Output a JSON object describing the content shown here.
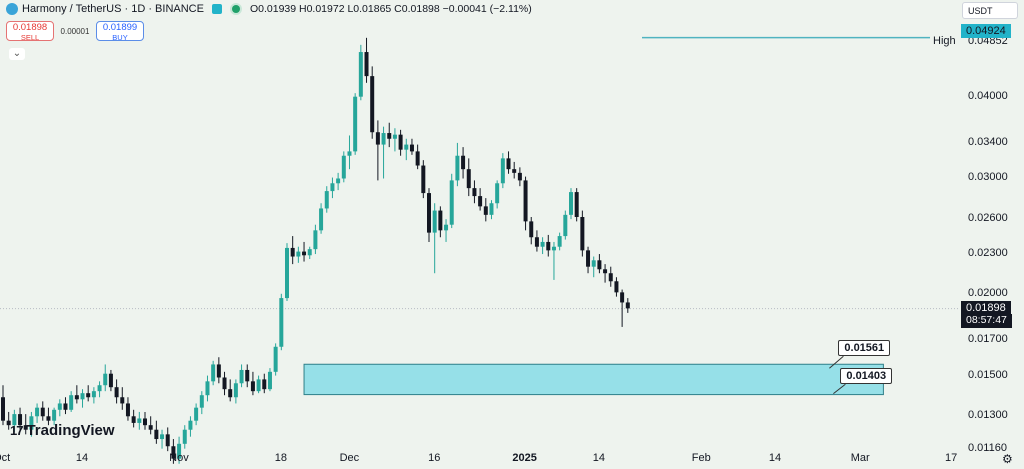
{
  "header": {
    "ticker": "Harmony / TetherUS · 1D · BINANCE",
    "ohlc": "O0.01939 H0.01972 L0.01865 C0.01898 −0.00041 (−2.11%)"
  },
  "trade": {
    "sell_price": "0.01898",
    "sell_label": "SELL",
    "spread": "0.00001",
    "buy_price": "0.01899",
    "buy_label": "BUY"
  },
  "currency": "USDT",
  "brand": "TradingView",
  "colors": {
    "up": "#26a69a",
    "down": "#131722",
    "zone_fill": "#96e0e8",
    "zone_border": "#2f7f88",
    "high_line": "#4fb3c0",
    "badge_dark": "#131722",
    "badge_teal": "#22b3c9"
  },
  "chart_data": {
    "type": "candlestick",
    "y_scale": "log",
    "ylim": [
      0.0108,
      0.0562
    ],
    "price_ticks": [
      "0.04852",
      "0.04000",
      "0.03400",
      "0.03000",
      "0.02600",
      "0.02300",
      "0.02000",
      "0.01700",
      "0.01500",
      "0.01300",
      "0.01160"
    ],
    "price_tick_values": [
      0.04852,
      0.04,
      0.034,
      0.03,
      0.026,
      0.023,
      0.02,
      0.017,
      0.015,
      0.013,
      0.0116
    ],
    "time_ticks": [
      "Oct",
      "14",
      "Nov",
      "18",
      "Dec",
      "16",
      "2025",
      "14",
      "Feb",
      "14",
      "Mar",
      "17"
    ],
    "time_tick_days": [
      0,
      14,
      31,
      49,
      61,
      76,
      92,
      105,
      123,
      136,
      151,
      167
    ],
    "high_label": "High",
    "high_value": 0.04924,
    "high_value_label": "0.04924",
    "current_price": 0.01898,
    "current_price_label": "0.01898",
    "countdown": "08:57:47",
    "zone": {
      "top": 0.01561,
      "bottom": 0.01403,
      "top_label": "0.01561",
      "bottom_label": "0.01403",
      "start_day": 53,
      "end_day": 155
    },
    "candles": [
      {
        "d": 0,
        "o": 0.0139,
        "h": 0.0145,
        "l": 0.0126,
        "c": 0.0128
      },
      {
        "d": 1,
        "o": 0.0128,
        "h": 0.0132,
        "l": 0.0124,
        "c": 0.0126
      },
      {
        "d": 2,
        "o": 0.0126,
        "h": 0.0133,
        "l": 0.0123,
        "c": 0.0131
      },
      {
        "d": 3,
        "o": 0.0131,
        "h": 0.0134,
        "l": 0.0124,
        "c": 0.0126
      },
      {
        "d": 4,
        "o": 0.0126,
        "h": 0.0131,
        "l": 0.0122,
        "c": 0.0124
      },
      {
        "d": 5,
        "o": 0.0124,
        "h": 0.0132,
        "l": 0.0121,
        "c": 0.013
      },
      {
        "d": 6,
        "o": 0.013,
        "h": 0.0136,
        "l": 0.0127,
        "c": 0.0134
      },
      {
        "d": 7,
        "o": 0.0134,
        "h": 0.0137,
        "l": 0.0128,
        "c": 0.013
      },
      {
        "d": 8,
        "o": 0.013,
        "h": 0.0134,
        "l": 0.0126,
        "c": 0.0128
      },
      {
        "d": 9,
        "o": 0.0128,
        "h": 0.0134,
        "l": 0.0126,
        "c": 0.0133
      },
      {
        "d": 10,
        "o": 0.0133,
        "h": 0.0138,
        "l": 0.013,
        "c": 0.0136
      },
      {
        "d": 11,
        "o": 0.0136,
        "h": 0.0139,
        "l": 0.0131,
        "c": 0.0133
      },
      {
        "d": 12,
        "o": 0.0133,
        "h": 0.0142,
        "l": 0.0132,
        "c": 0.014
      },
      {
        "d": 13,
        "o": 0.014,
        "h": 0.0145,
        "l": 0.0136,
        "c": 0.0138
      },
      {
        "d": 14,
        "o": 0.0138,
        "h": 0.0143,
        "l": 0.0134,
        "c": 0.0141
      },
      {
        "d": 15,
        "o": 0.0141,
        "h": 0.0145,
        "l": 0.0137,
        "c": 0.0139
      },
      {
        "d": 16,
        "o": 0.0139,
        "h": 0.0144,
        "l": 0.0136,
        "c": 0.0142
      },
      {
        "d": 17,
        "o": 0.0142,
        "h": 0.0147,
        "l": 0.0139,
        "c": 0.0145
      },
      {
        "d": 18,
        "o": 0.0145,
        "h": 0.0156,
        "l": 0.0142,
        "c": 0.0151
      },
      {
        "d": 19,
        "o": 0.0151,
        "h": 0.0153,
        "l": 0.0142,
        "c": 0.0144
      },
      {
        "d": 20,
        "o": 0.0144,
        "h": 0.0148,
        "l": 0.0136,
        "c": 0.0139
      },
      {
        "d": 21,
        "o": 0.0139,
        "h": 0.0144,
        "l": 0.0133,
        "c": 0.0136
      },
      {
        "d": 22,
        "o": 0.0136,
        "h": 0.0139,
        "l": 0.0128,
        "c": 0.013
      },
      {
        "d": 23,
        "o": 0.013,
        "h": 0.0133,
        "l": 0.0125,
        "c": 0.0127
      },
      {
        "d": 24,
        "o": 0.0127,
        "h": 0.0132,
        "l": 0.0124,
        "c": 0.0129
      },
      {
        "d": 25,
        "o": 0.0129,
        "h": 0.0132,
        "l": 0.0124,
        "c": 0.0126
      },
      {
        "d": 26,
        "o": 0.0126,
        "h": 0.013,
        "l": 0.0122,
        "c": 0.0124
      },
      {
        "d": 27,
        "o": 0.0124,
        "h": 0.0128,
        "l": 0.0118,
        "c": 0.012
      },
      {
        "d": 28,
        "o": 0.012,
        "h": 0.0124,
        "l": 0.0116,
        "c": 0.0122
      },
      {
        "d": 29,
        "o": 0.0122,
        "h": 0.0125,
        "l": 0.0115,
        "c": 0.0117
      },
      {
        "d": 30,
        "o": 0.0117,
        "h": 0.012,
        "l": 0.011,
        "c": 0.0112
      },
      {
        "d": 31,
        "o": 0.0112,
        "h": 0.0121,
        "l": 0.011,
        "c": 0.0118
      },
      {
        "d": 32,
        "o": 0.0118,
        "h": 0.0126,
        "l": 0.0116,
        "c": 0.0124
      },
      {
        "d": 33,
        "o": 0.0124,
        "h": 0.013,
        "l": 0.0121,
        "c": 0.0128
      },
      {
        "d": 34,
        "o": 0.0128,
        "h": 0.0136,
        "l": 0.0126,
        "c": 0.0134
      },
      {
        "d": 35,
        "o": 0.0134,
        "h": 0.0142,
        "l": 0.0131,
        "c": 0.014
      },
      {
        "d": 36,
        "o": 0.014,
        "h": 0.015,
        "l": 0.0137,
        "c": 0.0147
      },
      {
        "d": 37,
        "o": 0.0147,
        "h": 0.0158,
        "l": 0.0145,
        "c": 0.0156
      },
      {
        "d": 38,
        "o": 0.0156,
        "h": 0.016,
        "l": 0.0146,
        "c": 0.0149
      },
      {
        "d": 39,
        "o": 0.0149,
        "h": 0.0152,
        "l": 0.014,
        "c": 0.0143
      },
      {
        "d": 40,
        "o": 0.0143,
        "h": 0.0148,
        "l": 0.0137,
        "c": 0.0139
      },
      {
        "d": 41,
        "o": 0.0139,
        "h": 0.0148,
        "l": 0.0136,
        "c": 0.0146
      },
      {
        "d": 42,
        "o": 0.0146,
        "h": 0.0156,
        "l": 0.0144,
        "c": 0.0153
      },
      {
        "d": 43,
        "o": 0.0153,
        "h": 0.0156,
        "l": 0.0144,
        "c": 0.0147
      },
      {
        "d": 44,
        "o": 0.0147,
        "h": 0.0152,
        "l": 0.014,
        "c": 0.0142
      },
      {
        "d": 45,
        "o": 0.0142,
        "h": 0.015,
        "l": 0.0141,
        "c": 0.0148
      },
      {
        "d": 46,
        "o": 0.0148,
        "h": 0.0151,
        "l": 0.0141,
        "c": 0.0143
      },
      {
        "d": 47,
        "o": 0.0143,
        "h": 0.0154,
        "l": 0.0142,
        "c": 0.0152
      },
      {
        "d": 48,
        "o": 0.0152,
        "h": 0.0168,
        "l": 0.015,
        "c": 0.0166
      },
      {
        "d": 49,
        "o": 0.0166,
        "h": 0.02,
        "l": 0.0164,
        "c": 0.0197
      },
      {
        "d": 50,
        "o": 0.0197,
        "h": 0.0239,
        "l": 0.0195,
        "c": 0.0235
      },
      {
        "d": 51,
        "o": 0.0235,
        "h": 0.0245,
        "l": 0.0222,
        "c": 0.0228
      },
      {
        "d": 52,
        "o": 0.0228,
        "h": 0.0236,
        "l": 0.0223,
        "c": 0.0232
      },
      {
        "d": 53,
        "o": 0.0232,
        "h": 0.024,
        "l": 0.0224,
        "c": 0.0229
      },
      {
        "d": 54,
        "o": 0.0229,
        "h": 0.0236,
        "l": 0.0226,
        "c": 0.0234
      },
      {
        "d": 55,
        "o": 0.0234,
        "h": 0.0255,
        "l": 0.023,
        "c": 0.025
      },
      {
        "d": 56,
        "o": 0.025,
        "h": 0.0275,
        "l": 0.0247,
        "c": 0.027
      },
      {
        "d": 57,
        "o": 0.027,
        "h": 0.0292,
        "l": 0.0266,
        "c": 0.0287
      },
      {
        "d": 58,
        "o": 0.0287,
        "h": 0.0301,
        "l": 0.028,
        "c": 0.0295
      },
      {
        "d": 59,
        "o": 0.0295,
        "h": 0.0306,
        "l": 0.0288,
        "c": 0.03
      },
      {
        "d": 60,
        "o": 0.03,
        "h": 0.033,
        "l": 0.0296,
        "c": 0.0325
      },
      {
        "d": 61,
        "o": 0.0325,
        "h": 0.0349,
        "l": 0.031,
        "c": 0.033
      },
      {
        "d": 62,
        "o": 0.033,
        "h": 0.0405,
        "l": 0.0326,
        "c": 0.04
      },
      {
        "d": 63,
        "o": 0.04,
        "h": 0.048,
        "l": 0.0395,
        "c": 0.0468
      },
      {
        "d": 64,
        "o": 0.0468,
        "h": 0.0492,
        "l": 0.042,
        "c": 0.043
      },
      {
        "d": 65,
        "o": 0.043,
        "h": 0.0445,
        "l": 0.0345,
        "c": 0.0353
      },
      {
        "d": 66,
        "o": 0.0353,
        "h": 0.0368,
        "l": 0.0298,
        "c": 0.0338
      },
      {
        "d": 67,
        "o": 0.0338,
        "h": 0.036,
        "l": 0.03,
        "c": 0.0352
      },
      {
        "d": 68,
        "o": 0.0352,
        "h": 0.0365,
        "l": 0.0335,
        "c": 0.0345
      },
      {
        "d": 69,
        "o": 0.0345,
        "h": 0.0358,
        "l": 0.033,
        "c": 0.035
      },
      {
        "d": 70,
        "o": 0.035,
        "h": 0.0356,
        "l": 0.0325,
        "c": 0.0332
      },
      {
        "d": 71,
        "o": 0.0332,
        "h": 0.0345,
        "l": 0.032,
        "c": 0.0338
      },
      {
        "d": 72,
        "o": 0.0338,
        "h": 0.0345,
        "l": 0.0326,
        "c": 0.033
      },
      {
        "d": 73,
        "o": 0.033,
        "h": 0.0338,
        "l": 0.031,
        "c": 0.0314
      },
      {
        "d": 74,
        "o": 0.0314,
        "h": 0.032,
        "l": 0.028,
        "c": 0.0285
      },
      {
        "d": 75,
        "o": 0.0285,
        "h": 0.029,
        "l": 0.024,
        "c": 0.0248
      },
      {
        "d": 76,
        "o": 0.0248,
        "h": 0.0275,
        "l": 0.0215,
        "c": 0.0268
      },
      {
        "d": 77,
        "o": 0.0268,
        "h": 0.0272,
        "l": 0.0244,
        "c": 0.025
      },
      {
        "d": 78,
        "o": 0.025,
        "h": 0.026,
        "l": 0.024,
        "c": 0.0255
      },
      {
        "d": 79,
        "o": 0.0255,
        "h": 0.0305,
        "l": 0.0252,
        "c": 0.0298
      },
      {
        "d": 80,
        "o": 0.0298,
        "h": 0.034,
        "l": 0.0292,
        "c": 0.0325
      },
      {
        "d": 81,
        "o": 0.0325,
        "h": 0.0335,
        "l": 0.03,
        "c": 0.031
      },
      {
        "d": 82,
        "o": 0.031,
        "h": 0.0322,
        "l": 0.0282,
        "c": 0.029
      },
      {
        "d": 83,
        "o": 0.029,
        "h": 0.0298,
        "l": 0.0275,
        "c": 0.0282
      },
      {
        "d": 84,
        "o": 0.0282,
        "h": 0.029,
        "l": 0.0268,
        "c": 0.0272
      },
      {
        "d": 85,
        "o": 0.0272,
        "h": 0.028,
        "l": 0.0258,
        "c": 0.0264
      },
      {
        "d": 86,
        "o": 0.0264,
        "h": 0.0278,
        "l": 0.026,
        "c": 0.0275
      },
      {
        "d": 87,
        "o": 0.0275,
        "h": 0.0298,
        "l": 0.027,
        "c": 0.0295
      },
      {
        "d": 88,
        "o": 0.0295,
        "h": 0.0328,
        "l": 0.029,
        "c": 0.0322
      },
      {
        "d": 89,
        "o": 0.0322,
        "h": 0.033,
        "l": 0.0305,
        "c": 0.031
      },
      {
        "d": 90,
        "o": 0.031,
        "h": 0.0318,
        "l": 0.03,
        "c": 0.0306
      },
      {
        "d": 91,
        "o": 0.0306,
        "h": 0.0312,
        "l": 0.0292,
        "c": 0.0298
      },
      {
        "d": 92,
        "o": 0.0298,
        "h": 0.0302,
        "l": 0.025,
        "c": 0.0258
      },
      {
        "d": 93,
        "o": 0.0258,
        "h": 0.0262,
        "l": 0.0238,
        "c": 0.0244
      },
      {
        "d": 94,
        "o": 0.0244,
        "h": 0.025,
        "l": 0.0232,
        "c": 0.0236
      },
      {
        "d": 95,
        "o": 0.0236,
        "h": 0.0244,
        "l": 0.023,
        "c": 0.024
      },
      {
        "d": 96,
        "o": 0.024,
        "h": 0.0246,
        "l": 0.0228,
        "c": 0.0233
      },
      {
        "d": 97,
        "o": 0.0233,
        "h": 0.024,
        "l": 0.021,
        "c": 0.0236
      },
      {
        "d": 98,
        "o": 0.0236,
        "h": 0.0248,
        "l": 0.0233,
        "c": 0.0245
      },
      {
        "d": 99,
        "o": 0.0245,
        "h": 0.0268,
        "l": 0.0242,
        "c": 0.0264
      },
      {
        "d": 100,
        "o": 0.0264,
        "h": 0.029,
        "l": 0.026,
        "c": 0.0286
      },
      {
        "d": 101,
        "o": 0.0286,
        "h": 0.029,
        "l": 0.0258,
        "c": 0.0262
      },
      {
        "d": 102,
        "o": 0.0262,
        "h": 0.0268,
        "l": 0.0228,
        "c": 0.0233
      },
      {
        "d": 103,
        "o": 0.0233,
        "h": 0.0236,
        "l": 0.0215,
        "c": 0.022
      },
      {
        "d": 104,
        "o": 0.022,
        "h": 0.0228,
        "l": 0.0212,
        "c": 0.0225
      },
      {
        "d": 105,
        "o": 0.0225,
        "h": 0.023,
        "l": 0.0215,
        "c": 0.0218
      },
      {
        "d": 106,
        "o": 0.0218,
        "h": 0.0222,
        "l": 0.0208,
        "c": 0.0215
      },
      {
        "d": 107,
        "o": 0.0215,
        "h": 0.022,
        "l": 0.0205,
        "c": 0.0209
      },
      {
        "d": 108,
        "o": 0.0209,
        "h": 0.0212,
        "l": 0.0198,
        "c": 0.0201
      },
      {
        "d": 109,
        "o": 0.0201,
        "h": 0.0203,
        "l": 0.0178,
        "c": 0.0194
      },
      {
        "d": 110,
        "o": 0.0194,
        "h": 0.0197,
        "l": 0.0187,
        "c": 0.019
      }
    ]
  }
}
